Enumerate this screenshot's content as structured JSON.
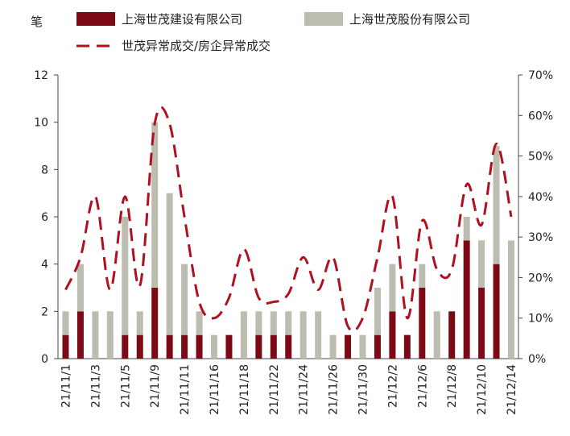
{
  "chart_data": {
    "type": "bar",
    "y_left_unit": "笔",
    "ylim_left": [
      0,
      12
    ],
    "yticks_left": [
      "0",
      "2",
      "4",
      "6",
      "8",
      "10",
      "12"
    ],
    "ylim_right": [
      0,
      70
    ],
    "yticks_right": [
      "0%",
      "10%",
      "20%",
      "30%",
      "40%",
      "50%",
      "60%",
      "70%"
    ],
    "x_tick_labels": [
      "21/11/1",
      "21/11/3",
      "21/11/5",
      "21/11/9",
      "21/11/11",
      "21/11/16",
      "21/11/18",
      "21/11/22",
      "21/11/24",
      "21/11/26",
      "21/11/30",
      "21/12/2",
      "21/12/6",
      "21/12/8",
      "21/12/10",
      "21/12/14"
    ],
    "legend_position": "top",
    "series": [
      {
        "name": "上海世茂建设有限公司",
        "type": "stacked-bar",
        "color": "#7b0a14",
        "values": [
          1,
          2,
          0,
          0,
          1,
          1,
          3,
          1,
          1,
          1,
          0,
          1,
          0,
          1,
          1,
          1,
          0,
          0,
          0,
          1,
          0,
          1,
          2,
          1,
          3,
          0,
          2,
          5,
          3,
          4,
          0
        ]
      },
      {
        "name": "上海世茂股份有限公司",
        "type": "stacked-bar",
        "color": "#bcbcb0",
        "values": [
          1,
          2,
          2,
          2,
          5,
          1,
          7,
          6,
          3,
          1,
          1,
          0,
          2,
          1,
          1,
          1,
          2,
          2,
          1,
          0,
          1,
          2,
          2,
          0,
          1,
          2,
          0,
          1,
          2,
          5,
          5
        ]
      },
      {
        "name": "世茂异常成交/房企异常成交",
        "type": "line",
        "axis": "right",
        "color": "#b0101e",
        "values": [
          17,
          25,
          40,
          17,
          40,
          18,
          58,
          58,
          35,
          14,
          10,
          15,
          27,
          15,
          14,
          16,
          25,
          17,
          25,
          8,
          10,
          25,
          40,
          10,
          34,
          22,
          22,
          43,
          33,
          53,
          35
        ]
      }
    ]
  }
}
